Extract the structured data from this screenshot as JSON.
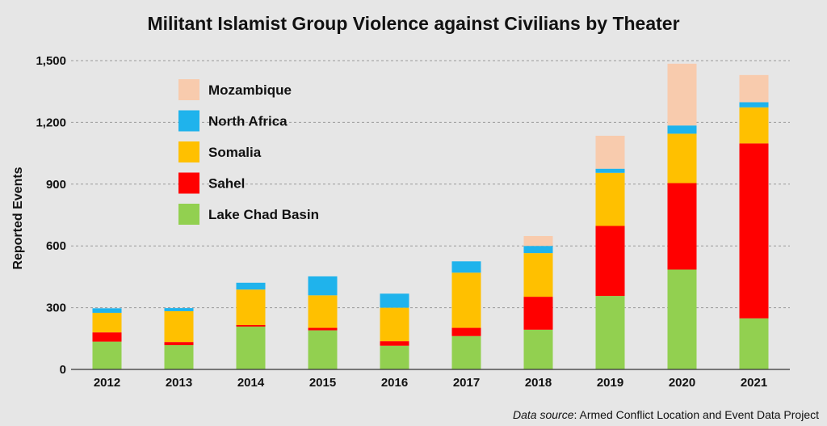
{
  "chart_data": {
    "type": "bar",
    "stacked": true,
    "title": "Militant Islamist Group Violence against Civilians by Theater",
    "xlabel": "",
    "ylabel": "Reported Events",
    "ylim": [
      0,
      1500
    ],
    "yticks": [
      0,
      300,
      600,
      900,
      1200,
      1500
    ],
    "ytick_labels": [
      "0",
      "300",
      "600",
      "900",
      "1,200",
      "1,500"
    ],
    "grid": "horizontal, dashed",
    "legend_position": "top-left",
    "categories": [
      "2012",
      "2013",
      "2014",
      "2015",
      "2016",
      "2017",
      "2018",
      "2019",
      "2020",
      "2021"
    ],
    "series": [
      {
        "name": "Lake Chad Basin",
        "color": "#92d050",
        "values": [
          135,
          118,
          208,
          190,
          115,
          162,
          193,
          357,
          485,
          248
        ]
      },
      {
        "name": "Sahel",
        "color": "#ff0000",
        "values": [
          45,
          15,
          8,
          12,
          22,
          40,
          160,
          340,
          420,
          850
        ]
      },
      {
        "name": "Somalia",
        "color": "#ffc000",
        "values": [
          95,
          150,
          172,
          158,
          163,
          268,
          212,
          258,
          240,
          175
        ]
      },
      {
        "name": "North Africa",
        "color": "#1fb3ec",
        "values": [
          22,
          15,
          33,
          92,
          68,
          55,
          35,
          20,
          40,
          25
        ]
      },
      {
        "name": "Mozambique",
        "color": "#f8cbad",
        "values": [
          0,
          0,
          0,
          0,
          0,
          0,
          48,
          160,
          300,
          132
        ]
      }
    ]
  },
  "source": {
    "lead": "Data source",
    "text": ": Armed Conflict Location and Event Data Project"
  }
}
